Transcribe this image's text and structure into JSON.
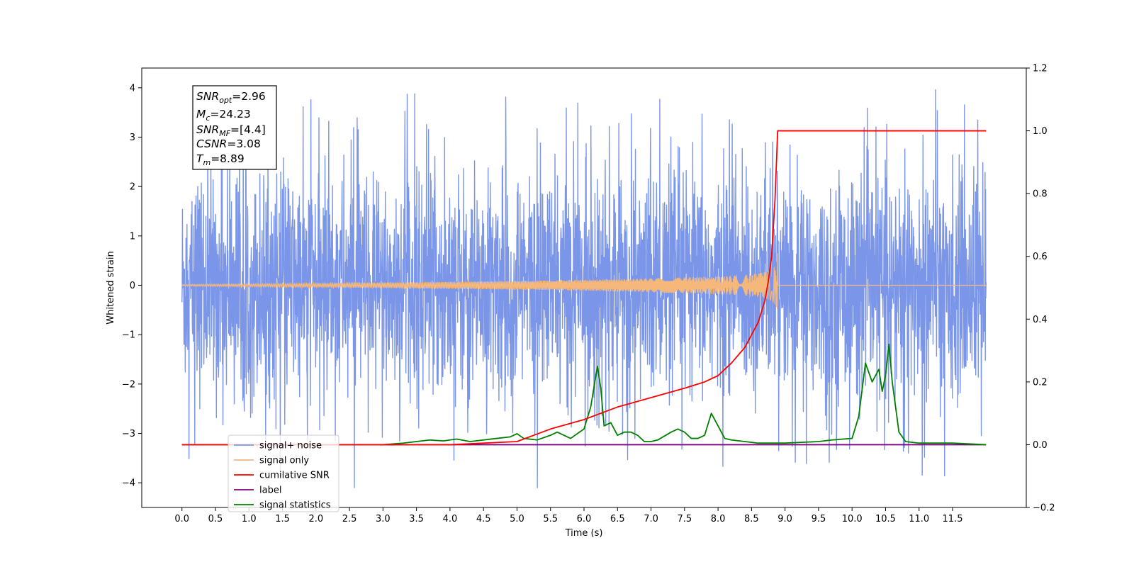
{
  "chart_data": {
    "type": "line",
    "title": "",
    "xlabel": "Time (s)",
    "ylabel": "Whitened strain",
    "ylabel_right": "",
    "xlim": [
      -0.6,
      12.6
    ],
    "ylim": [
      -4.5,
      4.4
    ],
    "ylim_right": [
      -0.2,
      1.2
    ],
    "x_ticks": [
      0.0,
      0.5,
      1.0,
      1.5,
      2.0,
      2.5,
      3.0,
      3.5,
      4.0,
      4.5,
      5.0,
      5.5,
      6.0,
      6.5,
      7.0,
      7.5,
      8.0,
      8.5,
      9.0,
      9.5,
      10.0,
      10.5,
      11.0,
      11.5
    ],
    "x_tick_labels": [
      "0.0",
      "0.5",
      "1.0",
      "1.5",
      "2.0",
      "2.5",
      "3.0",
      "3.5",
      "4.0",
      "4.5",
      "5.0",
      "5.5",
      "6.0",
      "6.5",
      "7.0",
      "7.5",
      "8.0",
      "8.5",
      "9.0",
      "9.5",
      "10.0",
      "10.5",
      "11.0",
      "11.5"
    ],
    "y_ticks": [
      -4,
      -3,
      -2,
      -1,
      0,
      1,
      2,
      3,
      4
    ],
    "y_tick_labels": [
      "−4",
      "−3",
      "−2",
      "−1",
      "0",
      "1",
      "2",
      "3",
      "4"
    ],
    "y_ticks_right": [
      -0.2,
      0.0,
      0.2,
      0.4,
      0.6,
      0.8,
      1.0,
      1.2
    ],
    "y_tick_labels_right": [
      "−0.2",
      "0.0",
      "0.2",
      "0.4",
      "0.6",
      "0.8",
      "1.0",
      "1.2"
    ],
    "grid": false,
    "legend_position": "lower-left",
    "annotations": {
      "snr_opt": {
        "main": "SNR",
        "sub": "opt",
        "value": "=2.96"
      },
      "mc": {
        "main": "M",
        "sub": "c",
        "value": "=24.23"
      },
      "snr_mf": {
        "main": "SNR",
        "sub": "MF",
        "value": "=[4.4]"
      },
      "csnr": {
        "main": "CSNR",
        "value": "=3.08"
      },
      "tm": {
        "main": "T",
        "sub": "m",
        "value": "=8.89"
      }
    },
    "series": [
      {
        "name": "signal+ noise",
        "axis": "left",
        "color": "#7b96e8",
        "description_range": [
          -4.1,
          4.0
        ],
        "x_range": [
          0.0,
          12.0
        ],
        "noise_amplitude_typical": 1.3
      },
      {
        "name": "signal only",
        "axis": "left",
        "color": "#f5b77a",
        "x_range": [
          0.0,
          12.0
        ],
        "chirp_peak_time": 8.89,
        "chirp_peak_amplitude": 0.7
      },
      {
        "name": "cumilative SNR",
        "axis": "right",
        "color": "#ff0000",
        "x": [
          0.0,
          2.0,
          4.0,
          5.0,
          5.5,
          6.0,
          6.5,
          7.0,
          7.5,
          7.8,
          8.0,
          8.2,
          8.4,
          8.5,
          8.6,
          8.7,
          8.75,
          8.8,
          8.85,
          8.89,
          9.0,
          10.0,
          11.0,
          12.0
        ],
        "values": [
          0.0,
          0.0,
          0.0,
          0.01,
          0.05,
          0.08,
          0.12,
          0.15,
          0.18,
          0.2,
          0.22,
          0.26,
          0.31,
          0.35,
          0.39,
          0.46,
          0.52,
          0.6,
          0.78,
          1.0,
          1.0,
          1.0,
          1.0,
          1.0
        ]
      },
      {
        "name": "label",
        "axis": "right",
        "color": "#800080",
        "x": [
          0.0,
          12.0
        ],
        "values": [
          0.0,
          0.0
        ]
      },
      {
        "name": "signal statistics",
        "axis": "right",
        "color": "#008000",
        "x": [
          0.0,
          3.0,
          3.3,
          3.5,
          3.7,
          3.9,
          4.1,
          4.3,
          4.5,
          4.7,
          4.9,
          5.0,
          5.1,
          5.3,
          5.5,
          5.6,
          5.8,
          6.0,
          6.1,
          6.2,
          6.25,
          6.3,
          6.4,
          6.5,
          6.6,
          6.7,
          6.8,
          6.9,
          7.0,
          7.1,
          7.3,
          7.4,
          7.5,
          7.6,
          7.7,
          7.8,
          7.9,
          8.0,
          8.1,
          8.2,
          8.4,
          8.6,
          9.0,
          9.5,
          9.7,
          10.0,
          10.1,
          10.2,
          10.3,
          10.4,
          10.45,
          10.5,
          10.55,
          10.6,
          10.7,
          10.8,
          11.0,
          11.5,
          12.0
        ],
        "values": [
          0.0,
          0.0,
          0.005,
          0.01,
          0.015,
          0.012,
          0.018,
          0.01,
          0.015,
          0.02,
          0.025,
          0.035,
          0.02,
          0.015,
          0.03,
          0.04,
          0.02,
          0.05,
          0.12,
          0.25,
          0.18,
          0.06,
          0.07,
          0.03,
          0.04,
          0.04,
          0.03,
          0.01,
          0.01,
          0.015,
          0.04,
          0.05,
          0.04,
          0.02,
          0.02,
          0.03,
          0.1,
          0.06,
          0.02,
          0.015,
          0.01,
          0.005,
          0.005,
          0.01,
          0.015,
          0.02,
          0.09,
          0.26,
          0.2,
          0.24,
          0.17,
          0.22,
          0.32,
          0.2,
          0.04,
          0.01,
          0.005,
          0.005,
          0.0
        ]
      }
    ]
  }
}
